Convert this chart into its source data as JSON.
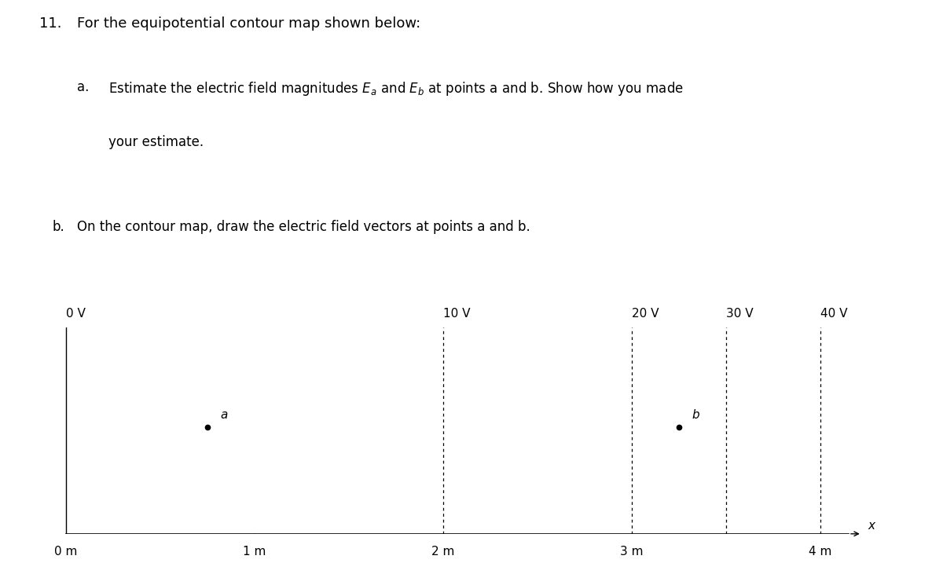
{
  "title_number": "11.",
  "title_text": "For the equipotential contour map shown below:",
  "part_a_label": "a.",
  "part_a_text_pre": "Estimate the electric field magnitudes ",
  "part_a_text_post": " at points a and b. Show how you made",
  "part_a_line2": "your estimate.",
  "part_b_label": "b.",
  "part_b_text": "On the contour map, draw the electric field vectors at points a and b.",
  "x_axis_label": "x",
  "x_ticks": [
    0,
    1,
    2,
    3,
    4
  ],
  "x_tick_labels": [
    "0 m",
    "1 m",
    "2 m",
    "3 m",
    "4 m"
  ],
  "equipotentials_x": [
    0.0,
    2.0,
    3.0,
    3.5,
    4.0
  ],
  "equipotential_labels": [
    "0 V",
    "10 V",
    "20 V",
    "30 V",
    "40 V"
  ],
  "point_a_x": 0.75,
  "point_a_y": 1.65,
  "point_b_x": 3.25,
  "point_b_y": 1.65,
  "y_min": 0,
  "y_max": 3.2,
  "x_min": -0.05,
  "x_max": 4.35,
  "background_color": "#ffffff",
  "text_color": "#000000",
  "line_color": "#000000",
  "font_size_title": 13,
  "font_size_body": 12,
  "font_size_labels": 11,
  "font_size_map": 11
}
